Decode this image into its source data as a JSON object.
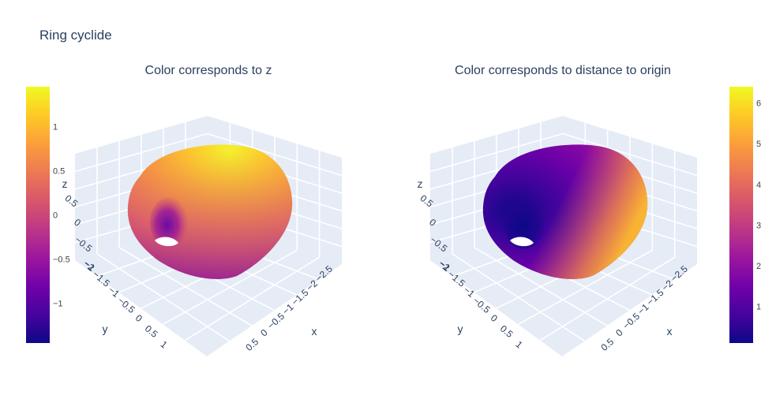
{
  "title": "Ring cyclide",
  "chart_data": [
    {
      "type": "surface",
      "subtitle": "Color corresponds to z",
      "colorscale": [
        "#0d0887",
        "#46039f",
        "#7201a8",
        "#9c179e",
        "#bd3786",
        "#d8576b",
        "#ed7953",
        "#fb9f3a",
        "#fdca26",
        "#f0f921"
      ],
      "colorbar": {
        "range": [
          -1.45,
          1.45
        ],
        "ticks": [
          "1",
          "0.5",
          "0",
          "−0.5",
          "−1"
        ],
        "tick_values": [
          1,
          0.5,
          0,
          -0.5,
          -1
        ]
      },
      "axes": {
        "x": {
          "label": "x",
          "ticks": [
            "−2.5",
            "−2",
            "−1.5",
            "−1",
            "−0.5",
            "0",
            "0.5"
          ]
        },
        "y": {
          "label": "y",
          "ticks": [
            "−2",
            "−1.5",
            "−1",
            "−0.5",
            "0",
            "0.5",
            "1"
          ]
        },
        "z": {
          "label": "z",
          "ticks": [
            "−1",
            "−0.5",
            "0",
            "0.5"
          ]
        }
      }
    },
    {
      "type": "surface",
      "subtitle": "Color corresponds to distance to origin",
      "colorscale": [
        "#0d0887",
        "#46039f",
        "#7201a8",
        "#9c179e",
        "#bd3786",
        "#d8576b",
        "#ed7953",
        "#fb9f3a",
        "#fdca26",
        "#f0f921"
      ],
      "colorbar": {
        "range": [
          0.1,
          6.4
        ],
        "ticks": [
          "6",
          "5",
          "4",
          "3",
          "2",
          "1"
        ],
        "tick_values": [
          6,
          5,
          4,
          3,
          2,
          1
        ]
      },
      "axes": {
        "x": {
          "label": "x",
          "ticks": [
            "−2.5",
            "−2",
            "−1.5",
            "−1",
            "−0.5",
            "0",
            "0.5"
          ]
        },
        "y": {
          "label": "y",
          "ticks": [
            "−2",
            "−1.5",
            "−1",
            "−0.5",
            "0",
            "0.5",
            "1"
          ]
        },
        "z": {
          "label": "z",
          "ticks": [
            "−1",
            "−0.5",
            "0",
            "0.5"
          ]
        }
      }
    }
  ]
}
